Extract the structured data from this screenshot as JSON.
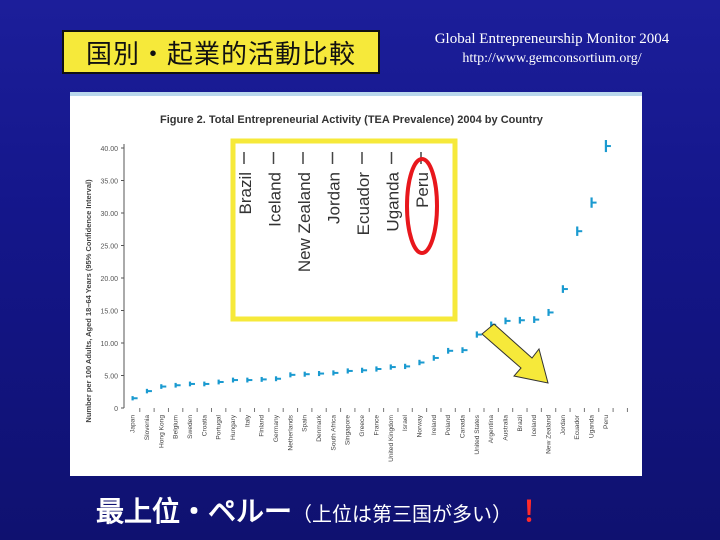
{
  "slide": {
    "title": "国別・起業的活動比較",
    "source_line1": "Global Entrepreneurship Monitor  2004",
    "source_line2": "http://www.gemconsortium.org/",
    "caption_main": "最上位・ペルー",
    "caption_paren": "（上位は第三国が多い）",
    "caption_excl": "！"
  },
  "colors": {
    "background": "#14168a",
    "title_box": "#f6e93a",
    "highlight_box": "#f6e93a",
    "circle": "#e8171c",
    "arrow": "#f6e93a",
    "series": "#1a9ad0",
    "caption_accent": "#ff2a2a"
  },
  "chart_data": {
    "type": "scatter",
    "title": "Figure 2. Total Entrepreneurial Activity (TEA Prevalence) 2004 by Country",
    "ylabel": "Number per 100 Adults, Aged 18–64 Years (95% Confidence Interval)",
    "ylim": [
      0,
      40
    ],
    "yticks": [
      "0",
      "5.00",
      "10.00",
      "15.00",
      "20.00",
      "25.00",
      "30.00",
      "35.00",
      "40.00"
    ],
    "grid": false,
    "categories": [
      "Japan",
      "Slovenia",
      "Hong Kong",
      "Belgium",
      "Sweden",
      "Croatia",
      "Portugal",
      "Hungary",
      "Italy",
      "Finland",
      "Germany",
      "Netherlands",
      "Spain",
      "Denmark",
      "South Africa",
      "Singapore",
      "Greece",
      "France",
      "United Kingdom",
      "Israel",
      "Norway",
      "Ireland",
      "Poland",
      "Canada",
      "United States",
      "Argentina",
      "Australia",
      "Brazil",
      "Iceland",
      "New Zealand",
      "Jordan",
      "Ecuador",
      "Uganda",
      "Peru"
    ],
    "values": [
      1.5,
      2.6,
      3.3,
      3.5,
      3.7,
      3.7,
      4.0,
      4.3,
      4.3,
      4.4,
      4.5,
      5.1,
      5.2,
      5.3,
      5.4,
      5.7,
      5.8,
      6.0,
      6.3,
      6.4,
      7.0,
      7.7,
      8.8,
      8.9,
      11.3,
      12.8,
      13.4,
      13.5,
      13.6,
      14.7,
      18.3,
      27.2,
      31.6,
      40.3
    ],
    "highlight_labels": [
      "Brazil",
      "Iceland",
      "New Zealand",
      "Jordan",
      "Ecuador",
      "Uganda",
      "Peru"
    ],
    "circled": "Peru"
  }
}
